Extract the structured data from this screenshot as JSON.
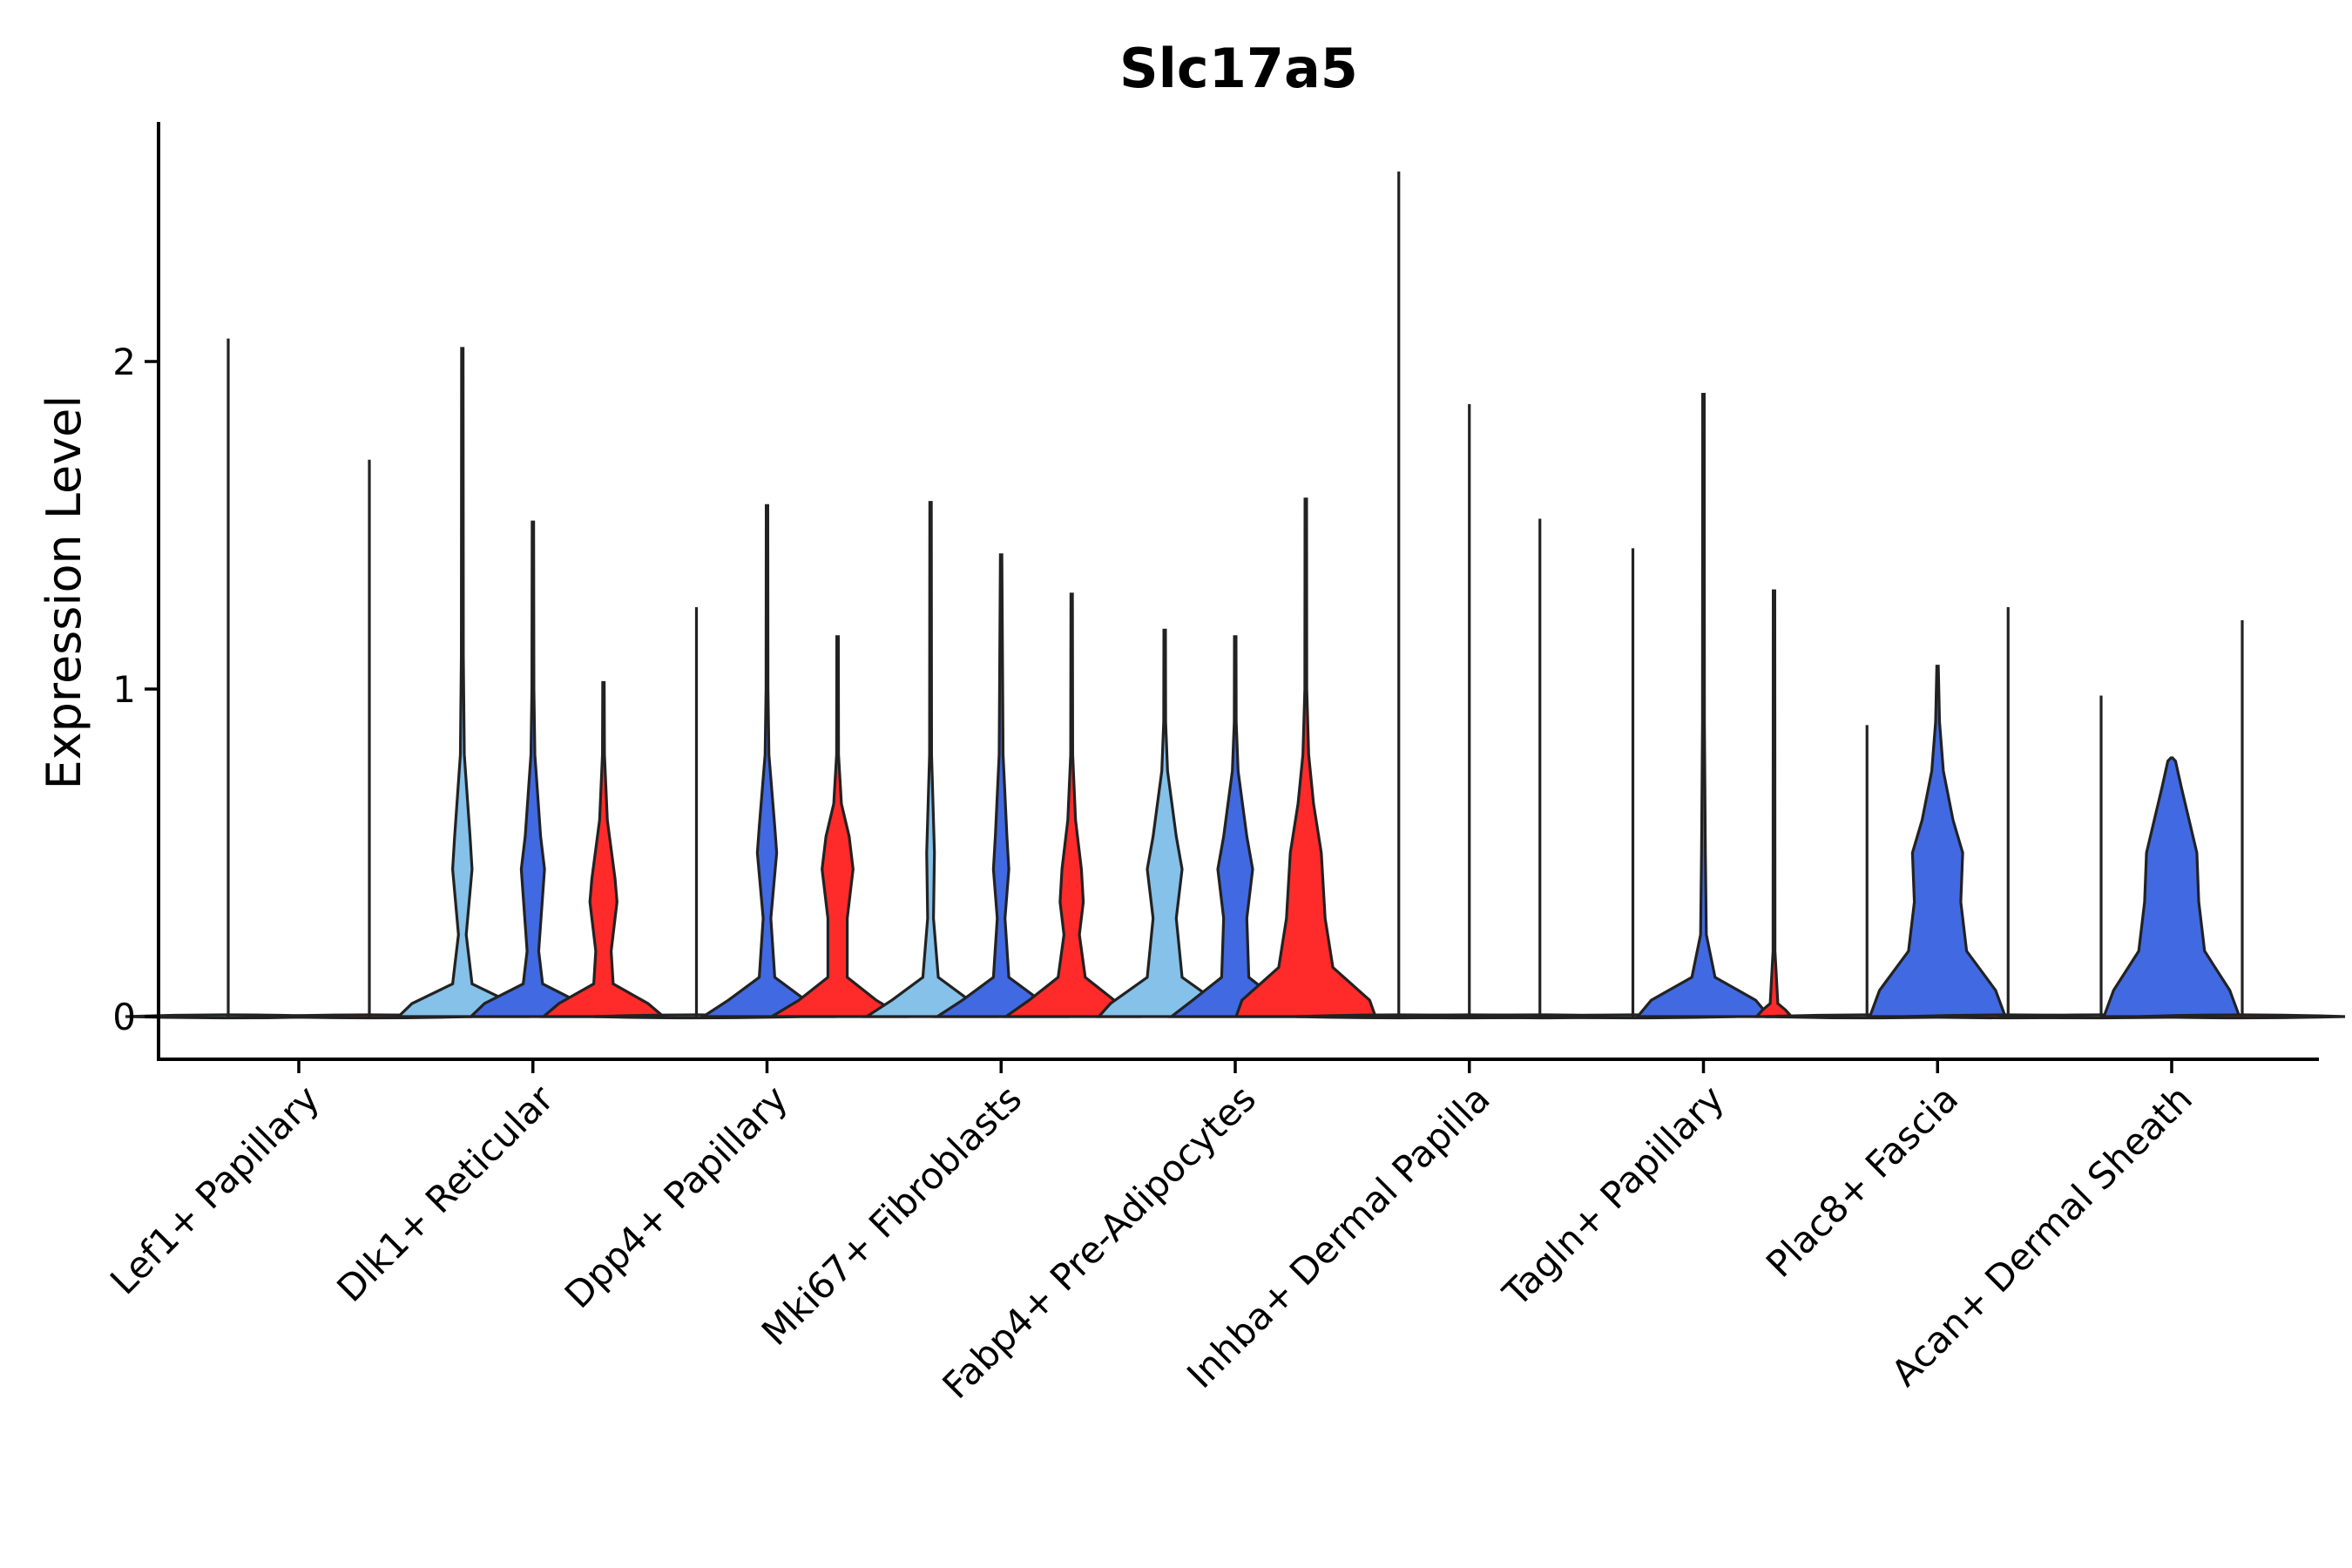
{
  "chart_data": {
    "type": "violin",
    "title": "Slc17a5",
    "xlabel": "",
    "ylabel": "Expression Level",
    "ylim": [
      -0.13,
      2.72
    ],
    "yticks": [
      0,
      1,
      2
    ],
    "categories": [
      "Lef1+ Papillary",
      "Dlk1+ Reticular",
      "Dpp4+ Papillary",
      "Mki67+ Fibroblasts",
      "Fabp4+ Pre-Adipocytes",
      "Inhba+ Dermal Papilla",
      "Tagln+ Papillary",
      "Plac8+ Fascia",
      "Acan+ Dermal Sheath"
    ],
    "group_colors": {
      "group1": "#85c1e9",
      "group2": "#4169e1",
      "group3": "#ff2a2a"
    },
    "violins": [
      {
        "category": 0,
        "group": "group1",
        "max": 2.07,
        "profile": [
          [
            0,
            0.02
          ]
        ]
      },
      {
        "category": 0,
        "group": "group3",
        "max": 1.7,
        "profile": [
          [
            0,
            0.02
          ]
        ]
      },
      {
        "category": 1,
        "group": "group1",
        "max": 2.04,
        "profile": [
          [
            0,
            0.33
          ],
          [
            0.04,
            0.26
          ],
          [
            0.1,
            0.05
          ],
          [
            0.25,
            0.02
          ],
          [
            0.45,
            0.05
          ],
          [
            0.55,
            0.04
          ],
          [
            0.8,
            0.01
          ],
          [
            1.1,
            0.005
          ]
        ]
      },
      {
        "category": 1,
        "group": "group2",
        "max": 1.51,
        "profile": [
          [
            0,
            0.32
          ],
          [
            0.04,
            0.25
          ],
          [
            0.1,
            0.05
          ],
          [
            0.2,
            0.03
          ],
          [
            0.45,
            0.06
          ],
          [
            0.55,
            0.04
          ],
          [
            0.8,
            0.01
          ],
          [
            1.0,
            0.005
          ]
        ]
      },
      {
        "category": 1,
        "group": "group3",
        "max": 1.02,
        "profile": [
          [
            0,
            0.31
          ],
          [
            0.04,
            0.23
          ],
          [
            0.1,
            0.05
          ],
          [
            0.2,
            0.04
          ],
          [
            0.35,
            0.07
          ],
          [
            0.42,
            0.06
          ],
          [
            0.6,
            0.02
          ],
          [
            0.8,
            0.005
          ]
        ]
      },
      {
        "category": 2,
        "group": "group1",
        "max": 1.25,
        "profile": [
          [
            0,
            0.02
          ]
        ]
      },
      {
        "category": 2,
        "group": "group2",
        "max": 1.56,
        "profile": [
          [
            0,
            0.33
          ],
          [
            0.05,
            0.2
          ],
          [
            0.12,
            0.04
          ],
          [
            0.3,
            0.02
          ],
          [
            0.5,
            0.05
          ],
          [
            0.58,
            0.04
          ],
          [
            0.8,
            0.01
          ],
          [
            1.0,
            0.005
          ]
        ]
      },
      {
        "category": 2,
        "group": "group3",
        "max": 1.16,
        "profile": [
          [
            0,
            0.34
          ],
          [
            0.05,
            0.2
          ],
          [
            0.12,
            0.05
          ],
          [
            0.3,
            0.05
          ],
          [
            0.45,
            0.08
          ],
          [
            0.55,
            0.06
          ],
          [
            0.65,
            0.02
          ],
          [
            0.8,
            0.005
          ]
        ]
      },
      {
        "category": 3,
        "group": "group1",
        "max": 1.57,
        "profile": [
          [
            0,
            0.33
          ],
          [
            0.05,
            0.2
          ],
          [
            0.12,
            0.04
          ],
          [
            0.3,
            0.015
          ],
          [
            0.5,
            0.02
          ],
          [
            0.8,
            0.005
          ]
        ]
      },
      {
        "category": 3,
        "group": "group2",
        "max": 1.41,
        "profile": [
          [
            0,
            0.33
          ],
          [
            0.05,
            0.2
          ],
          [
            0.12,
            0.04
          ],
          [
            0.3,
            0.02
          ],
          [
            0.45,
            0.04
          ],
          [
            0.55,
            0.03
          ],
          [
            0.8,
            0.01
          ]
        ]
      },
      {
        "category": 3,
        "group": "group3",
        "max": 1.29,
        "profile": [
          [
            0,
            0.34
          ],
          [
            0.05,
            0.22
          ],
          [
            0.12,
            0.07
          ],
          [
            0.25,
            0.04
          ],
          [
            0.35,
            0.06
          ],
          [
            0.45,
            0.05
          ],
          [
            0.6,
            0.02
          ],
          [
            0.8,
            0.005
          ]
        ]
      },
      {
        "category": 4,
        "group": "group1",
        "max": 1.18,
        "profile": [
          [
            0,
            0.34
          ],
          [
            0.04,
            0.28
          ],
          [
            0.12,
            0.09
          ],
          [
            0.3,
            0.06
          ],
          [
            0.45,
            0.09
          ],
          [
            0.55,
            0.06
          ],
          [
            0.75,
            0.015
          ],
          [
            0.9,
            0.005
          ]
        ]
      },
      {
        "category": 4,
        "group": "group2",
        "max": 1.16,
        "profile": [
          [
            0,
            0.33
          ],
          [
            0.05,
            0.22
          ],
          [
            0.12,
            0.07
          ],
          [
            0.3,
            0.06
          ],
          [
            0.45,
            0.09
          ],
          [
            0.55,
            0.06
          ],
          [
            0.75,
            0.015
          ],
          [
            0.9,
            0.005
          ]
        ]
      },
      {
        "category": 4,
        "group": "group3",
        "max": 1.58,
        "profile": [
          [
            0,
            0.36
          ],
          [
            0.05,
            0.33
          ],
          [
            0.15,
            0.14
          ],
          [
            0.3,
            0.1
          ],
          [
            0.5,
            0.08
          ],
          [
            0.65,
            0.04
          ],
          [
            0.8,
            0.015
          ],
          [
            1.0,
            0.005
          ]
        ]
      },
      {
        "category": 5,
        "group": "group1",
        "max": 2.58,
        "profile": [
          [
            0,
            0.02
          ]
        ]
      },
      {
        "category": 5,
        "group": "group2",
        "max": 1.87,
        "profile": [
          [
            0,
            0.02
          ]
        ]
      },
      {
        "category": 5,
        "group": "group3",
        "max": 1.52,
        "profile": [
          [
            0,
            0.02
          ]
        ]
      },
      {
        "category": 6,
        "group": "group1",
        "max": 1.43,
        "profile": [
          [
            0,
            0.02
          ]
        ]
      },
      {
        "category": 6,
        "group": "group2",
        "max": 1.9,
        "profile": [
          [
            0,
            0.34
          ],
          [
            0.05,
            0.27
          ],
          [
            0.12,
            0.06
          ],
          [
            0.25,
            0.015
          ],
          [
            0.5,
            0.01
          ],
          [
            0.9,
            0.005
          ]
        ]
      },
      {
        "category": 6,
        "group": "group3",
        "max": 1.3,
        "profile": [
          [
            0,
            0.09
          ],
          [
            0.02,
            0.06
          ],
          [
            0.04,
            0.02
          ],
          [
            0.2,
            0.005
          ]
        ]
      },
      {
        "category": 7,
        "group": "group1",
        "max": 0.89,
        "profile": [
          [
            0,
            0.02
          ]
        ]
      },
      {
        "category": 7,
        "group": "group2",
        "max": 1.07,
        "profile": [
          [
            0,
            0.35
          ],
          [
            0.08,
            0.3
          ],
          [
            0.2,
            0.15
          ],
          [
            0.35,
            0.12
          ],
          [
            0.5,
            0.13
          ],
          [
            0.6,
            0.08
          ],
          [
            0.75,
            0.03
          ],
          [
            0.9,
            0.01
          ]
        ]
      },
      {
        "category": 7,
        "group": "group3",
        "max": 1.25,
        "profile": [
          [
            0,
            0.02
          ]
        ]
      },
      {
        "category": 8,
        "group": "group1",
        "max": 0.98,
        "profile": [
          [
            0,
            0.02
          ]
        ]
      },
      {
        "category": 8,
        "group": "group2",
        "max": 0.79,
        "profile": [
          [
            0,
            0.35
          ],
          [
            0.08,
            0.3
          ],
          [
            0.2,
            0.17
          ],
          [
            0.35,
            0.14
          ],
          [
            0.5,
            0.13
          ],
          [
            0.6,
            0.09
          ],
          [
            0.7,
            0.05
          ],
          [
            0.78,
            0.02
          ]
        ]
      },
      {
        "category": 8,
        "group": "group3",
        "max": 1.21,
        "profile": [
          [
            0,
            0.02
          ]
        ]
      }
    ]
  }
}
